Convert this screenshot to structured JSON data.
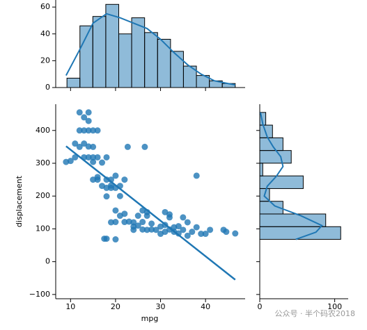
{
  "chart_data": [
    {
      "type": "scatter",
      "x_label": "mpg",
      "y_label": "displacement",
      "color": "#1f77b4",
      "x": [
        9,
        10,
        11,
        11,
        12,
        12,
        12,
        13,
        13,
        13,
        13,
        14,
        14,
        14,
        14,
        14,
        15,
        15,
        15,
        15,
        15,
        16,
        16,
        16,
        16,
        17,
        17,
        18,
        18,
        18,
        18,
        19,
        19,
        19,
        19,
        20,
        20,
        20,
        21,
        21,
        21,
        22,
        22,
        22,
        22.7,
        23,
        24,
        24,
        25,
        25,
        26,
        26,
        26,
        26.5,
        27,
        27,
        28,
        28,
        29,
        30,
        30,
        31,
        31,
        32,
        32,
        33,
        33,
        34,
        34,
        35,
        36,
        36,
        37,
        38,
        38,
        39,
        40,
        41,
        44,
        44.6,
        46.6,
        17.5,
        18,
        20,
        24,
        27,
        31,
        35,
        32,
        20
      ],
      "y": [
        304,
        307,
        360,
        318,
        455,
        400,
        350,
        440,
        400,
        360,
        318,
        455,
        429,
        400,
        351,
        318,
        400,
        350,
        318,
        304,
        250,
        400,
        318,
        250,
        258,
        302,
        231,
        318,
        250,
        225,
        199,
        250,
        232,
        225,
        120,
        262,
        225,
        156,
        200,
        231,
        140,
        250,
        121,
        146,
        350,
        122,
        120,
        107,
        140,
        110,
        98,
        121,
        156,
        350,
        97,
        140,
        98,
        116,
        97,
        85,
        107,
        91,
        151,
        98,
        135,
        105,
        91,
        108,
        86,
        97,
        120,
        79,
        91,
        262,
        105,
        85,
        85,
        97,
        97,
        91,
        86,
        70,
        70,
        121,
        97,
        151,
        112,
        135,
        144,
        68
      ],
      "xlim": [
        6.7,
        48.8
      ],
      "ylim": [
        -113,
        480
      ],
      "xticks": [
        10,
        20,
        30,
        40
      ],
      "yticks": [
        {
          "value": -100,
          "label": "−100"
        },
        0,
        100,
        200,
        300,
        400
      ],
      "regression": {
        "x": [
          9,
          46.6
        ],
        "y": [
          352,
          -55
        ]
      }
    },
    {
      "type": "histogram",
      "orientation": "vertical",
      "color": "#1f77b4",
      "bins": [
        9.2,
        12.08,
        14.95,
        17.83,
        20.71,
        23.58,
        26.46,
        29.34,
        32.22,
        35.09,
        37.97,
        40.85,
        43.72,
        46.6
      ],
      "counts": [
        7,
        46,
        53,
        62,
        40,
        52,
        41,
        36,
        27,
        16,
        9,
        5,
        3
      ],
      "kde": {
        "x": [
          9,
          12,
          15,
          18,
          21,
          24,
          27,
          30,
          33,
          36,
          39,
          42,
          45,
          46.6
        ],
        "y": [
          9,
          28,
          48,
          55,
          52,
          48,
          44,
          36,
          26,
          17,
          10,
          5,
          3,
          2
        ]
      },
      "xlim": [
        6.7,
        48.8
      ],
      "ylim": [
        0,
        65
      ],
      "yticks": [
        0,
        20,
        40,
        60
      ]
    },
    {
      "type": "histogram",
      "orientation": "horizontal",
      "color": "#1f77b4",
      "bins": [
        68,
        106.7,
        145.4,
        184.1,
        222.8,
        261.5,
        300.2,
        338.9,
        377.6,
        416.3,
        455
      ],
      "counts": [
        108,
        88,
        31,
        13,
        58,
        4,
        42,
        31,
        17,
        8
      ],
      "kde": {
        "y": [
          68,
          90,
          110,
          140,
          170,
          200,
          230,
          260,
          290,
          320,
          350,
          380,
          420,
          455
        ],
        "x": [
          48,
          75,
          83,
          55,
          20,
          6,
          10,
          22,
          31,
          28,
          18,
          10,
          4,
          1
        ]
      },
      "xlim": [
        0,
        118
      ],
      "xticks": [
        0,
        100
      ],
      "ylim": [
        -113,
        480
      ]
    }
  ],
  "watermark": "公众号 · 半个码农2018"
}
